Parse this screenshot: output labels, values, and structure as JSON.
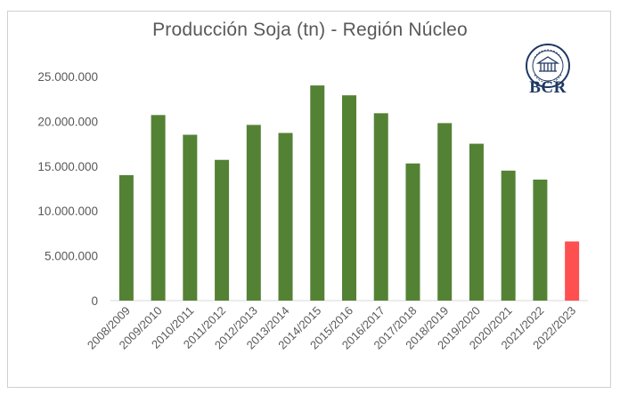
{
  "chart_data": {
    "type": "bar",
    "title": "Producción Soja (tn) - Región Núcleo",
    "xlabel": "",
    "ylabel": "",
    "ylim": [
      0,
      25000000
    ],
    "yticks": [
      0,
      5000000,
      10000000,
      15000000,
      20000000,
      25000000
    ],
    "ytick_labels": [
      "0",
      "5.000.000",
      "10.000.000",
      "15.000.000",
      "20.000.000",
      "25.000.000"
    ],
    "categories": [
      "2008/2009",
      "2009/2010",
      "2010/2011",
      "2011/2012",
      "2012/2013",
      "2013/2014",
      "2014/2015",
      "2015/2016",
      "2016/2017",
      "2017/2018",
      "2018/2019",
      "2019/2020",
      "2020/2021",
      "2021/2022",
      "2022/2023"
    ],
    "values": [
      14000000,
      20700000,
      18500000,
      15700000,
      19600000,
      18700000,
      24000000,
      22900000,
      20900000,
      15300000,
      19800000,
      17500000,
      14500000,
      13500000,
      6600000
    ],
    "bar_colors": [
      "#548235",
      "#548235",
      "#548235",
      "#548235",
      "#548235",
      "#548235",
      "#548235",
      "#548235",
      "#548235",
      "#548235",
      "#548235",
      "#548235",
      "#548235",
      "#548235",
      "#ff5050"
    ],
    "grid": false,
    "legend": "none"
  },
  "logo": {
    "text": "BCR",
    "icon": "bcr-seal-icon"
  }
}
